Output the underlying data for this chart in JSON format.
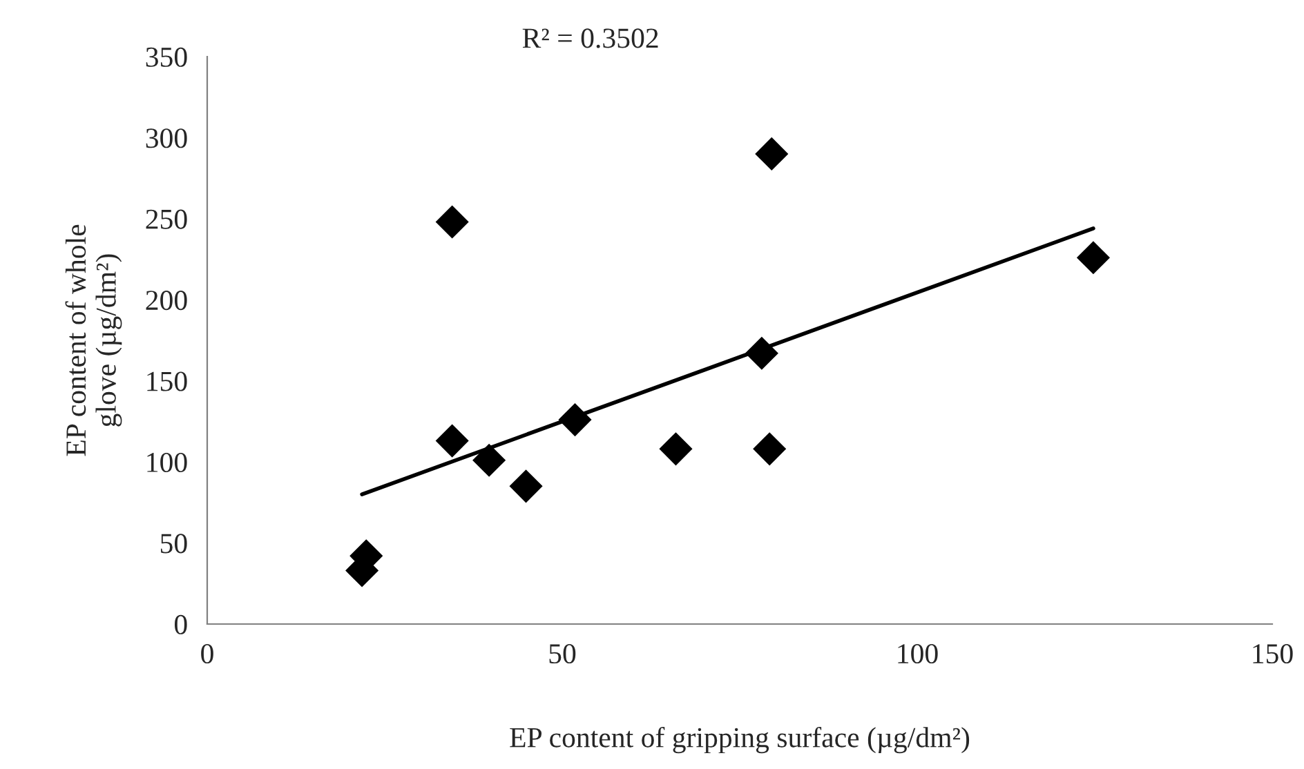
{
  "chart_data": {
    "type": "scatter",
    "xlabel": "EP content of gripping surface (µg/dm²)",
    "ylabel": "EP content of whole\nglove (µg/dm²)",
    "annotations": [
      "R² = 0.3502"
    ],
    "series": [
      {
        "color": "#000000",
        "marker": "diamond",
        "x": [
          21.8,
          22.4,
          34.5,
          34.5,
          39.7,
          44.9,
          51.8,
          66.0,
          78.1,
          79.2,
          79.5,
          124.8
        ],
        "values": [
          33,
          42,
          248,
          113,
          101,
          85,
          126,
          108,
          167,
          108,
          290,
          226
        ]
      },
      {
        "type": "line",
        "color": "#000000",
        "line_style": "solid",
        "x": [
          21.8,
          124.8
        ],
        "values": [
          80,
          244
        ]
      }
    ],
    "xlim": [
      0,
      150
    ],
    "xticks": [
      0,
      50,
      100,
      150
    ],
    "ylim": [
      0,
      350
    ],
    "yticks": [
      0,
      50,
      100,
      150,
      200,
      250,
      300,
      350
    ],
    "grid": false,
    "legend": false
  }
}
